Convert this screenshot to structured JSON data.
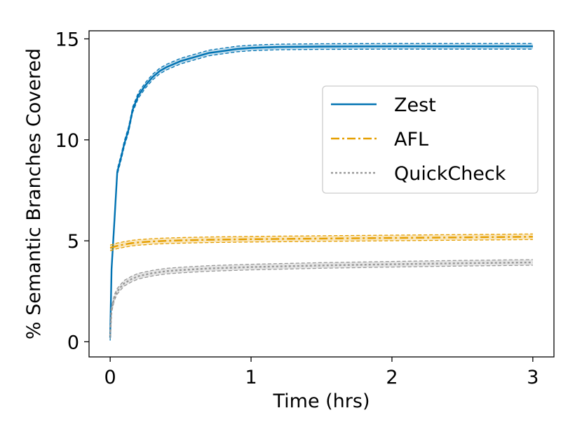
{
  "chart_data": {
    "type": "line",
    "title": "",
    "xlabel": "Time (hrs)",
    "ylabel": "% Semantic Branches Covered",
    "xlim": [
      -0.15,
      3.15
    ],
    "ylim": [
      -0.75,
      15.4
    ],
    "xticks": [
      0,
      1,
      2,
      3
    ],
    "yticks": [
      0,
      5,
      10,
      15
    ],
    "xtick_labels": [
      "0",
      "1",
      "2",
      "3"
    ],
    "ytick_labels": [
      "0",
      "5",
      "10",
      "15"
    ],
    "grid": false,
    "legend_position": "center-right",
    "series": [
      {
        "name": "Zest",
        "color": "#0072b2",
        "style": "solid",
        "band": true,
        "x": [
          0,
          0.01,
          0.03,
          0.05,
          0.08,
          0.1,
          0.13,
          0.16,
          0.2,
          0.25,
          0.3,
          0.35,
          0.4,
          0.5,
          0.6,
          0.7,
          0.8,
          0.9,
          1.0,
          1.1,
          1.2,
          1.5,
          2.0,
          2.5,
          3.0
        ],
        "values": [
          0.2,
          3.6,
          6.0,
          8.4,
          9.2,
          9.8,
          10.5,
          11.5,
          12.2,
          12.7,
          13.1,
          13.4,
          13.6,
          13.9,
          14.1,
          14.3,
          14.4,
          14.5,
          14.55,
          14.58,
          14.6,
          14.62,
          14.63,
          14.63,
          14.63
        ]
      },
      {
        "name": "AFL",
        "color": "#e69f00",
        "style": "dashdot",
        "band": true,
        "x": [
          0,
          0.05,
          0.1,
          0.15,
          0.2,
          0.3,
          0.4,
          0.5,
          0.7,
          1.0,
          1.5,
          2.0,
          2.5,
          3.0
        ],
        "values": [
          4.65,
          4.75,
          4.82,
          4.88,
          4.92,
          4.97,
          5.0,
          5.02,
          5.05,
          5.08,
          5.11,
          5.14,
          5.17,
          5.2
        ]
      },
      {
        "name": "QuickCheck",
        "color": "#999999",
        "style": "dotted",
        "band": true,
        "x": [
          0,
          0.01,
          0.03,
          0.05,
          0.08,
          0.1,
          0.15,
          0.2,
          0.3,
          0.4,
          0.5,
          0.7,
          1.0,
          1.5,
          2.0,
          2.5,
          3.0
        ],
        "values": [
          0.3,
          1.6,
          2.2,
          2.5,
          2.75,
          2.9,
          3.1,
          3.25,
          3.4,
          3.5,
          3.55,
          3.63,
          3.7,
          3.78,
          3.84,
          3.89,
          3.93
        ]
      }
    ]
  }
}
